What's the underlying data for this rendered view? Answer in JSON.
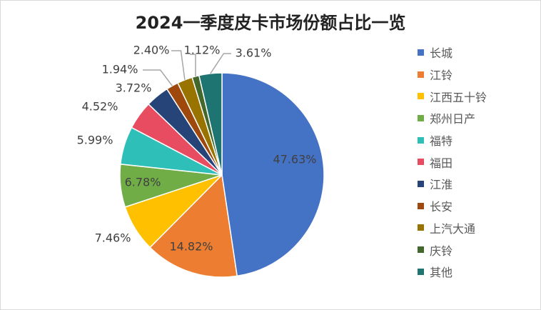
{
  "chart_data": {
    "type": "pie",
    "title": "2024一季度皮卡市场份额占比一览",
    "slices": [
      {
        "label": "长城",
        "value": 47.63,
        "display": "47.63%",
        "color": "#4472C4"
      },
      {
        "label": "江铃",
        "value": 14.82,
        "display": "14.82%",
        "color": "#ED7D31"
      },
      {
        "label": "江西五十铃",
        "value": 7.46,
        "display": "7.46%",
        "color": "#FFC000"
      },
      {
        "label": "郑州日产",
        "value": 6.78,
        "display": "6.78%",
        "color": "#70AD47"
      },
      {
        "label": "福特",
        "value": 5.99,
        "display": "5.99%",
        "color": "#2EBFB9"
      },
      {
        "label": "福田",
        "value": 4.52,
        "display": "4.52%",
        "color": "#E84C61"
      },
      {
        "label": "江淮",
        "value": 3.72,
        "display": "3.72%",
        "color": "#264478"
      },
      {
        "label": "长安",
        "value": 1.94,
        "display": "1.94%",
        "color": "#9E480E"
      },
      {
        "label": "上汽大通",
        "value": 2.4,
        "display": "2.40%",
        "color": "#997300"
      },
      {
        "label": "庆铃",
        "value": 1.12,
        "display": "1.12%",
        "color": "#43682B"
      },
      {
        "label": "其他",
        "value": 3.61,
        "display": "3.61%",
        "color": "#1E7470"
      }
    ],
    "legend_position": "right"
  }
}
